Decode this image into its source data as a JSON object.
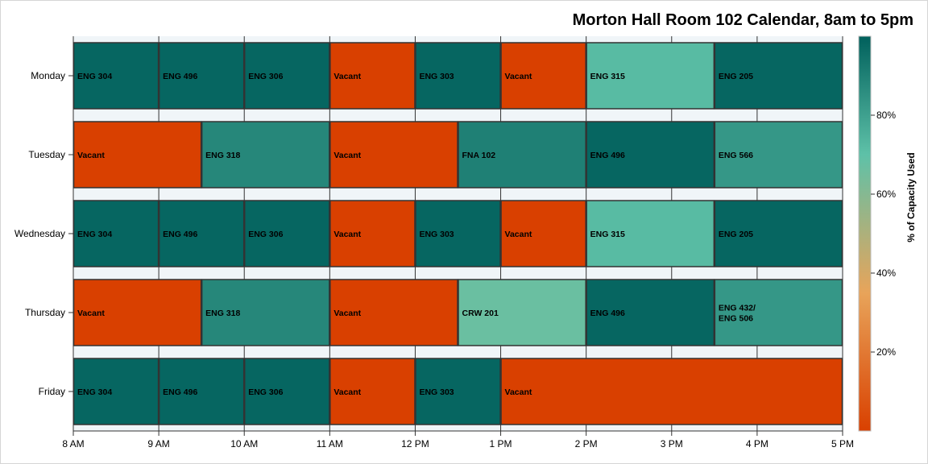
{
  "chart_data": {
    "type": "gantt",
    "title": "Morton Hall Room 102 Calendar, 8am to 5pm",
    "xlabel": "",
    "ylabel": "",
    "x_ticks": [
      {
        "hour": 8,
        "label": "8 AM"
      },
      {
        "hour": 9,
        "label": "9 AM"
      },
      {
        "hour": 10,
        "label": "10 AM"
      },
      {
        "hour": 11,
        "label": "11 AM"
      },
      {
        "hour": 12,
        "label": "12 PM"
      },
      {
        "hour": 13,
        "label": "1 PM"
      },
      {
        "hour": 14,
        "label": "2 PM"
      },
      {
        "hour": 15,
        "label": "3 PM"
      },
      {
        "hour": 16,
        "label": "4 PM"
      },
      {
        "hour": 17,
        "label": "5 PM"
      }
    ],
    "x_range": [
      8,
      17
    ],
    "days": [
      "Monday",
      "Tuesday",
      "Wednesday",
      "Thursday",
      "Friday"
    ],
    "schedule": [
      {
        "day": "Monday",
        "items": [
          {
            "start": 8,
            "end": 9,
            "label": "ENG 304",
            "capacity": 98
          },
          {
            "start": 9,
            "end": 10,
            "label": "ENG 496",
            "capacity": 98
          },
          {
            "start": 10,
            "end": 11,
            "label": "ENG 306",
            "capacity": 98
          },
          {
            "start": 11,
            "end": 12,
            "label": "Vacant",
            "capacity": 0
          },
          {
            "start": 12,
            "end": 13,
            "label": "ENG 303",
            "capacity": 98
          },
          {
            "start": 13,
            "end": 14,
            "label": "Vacant",
            "capacity": 0
          },
          {
            "start": 14,
            "end": 15.5,
            "label": "ENG 315",
            "capacity": 72
          },
          {
            "start": 15.5,
            "end": 17,
            "label": "ENG 205",
            "capacity": 98
          }
        ]
      },
      {
        "day": "Tuesday",
        "items": [
          {
            "start": 8,
            "end": 9.5,
            "label": "Vacant",
            "capacity": 0
          },
          {
            "start": 9.5,
            "end": 11,
            "label": "ENG 318",
            "capacity": 88
          },
          {
            "start": 11,
            "end": 12.5,
            "label": "Vacant",
            "capacity": 0
          },
          {
            "start": 12.5,
            "end": 14,
            "label": "FNA 102",
            "capacity": 90
          },
          {
            "start": 14,
            "end": 15.5,
            "label": "ENG 496",
            "capacity": 98
          },
          {
            "start": 15.5,
            "end": 17,
            "label": "ENG 566",
            "capacity": 83
          }
        ]
      },
      {
        "day": "Wednesday",
        "items": [
          {
            "start": 8,
            "end": 9,
            "label": "ENG 304",
            "capacity": 98
          },
          {
            "start": 9,
            "end": 10,
            "label": "ENG 496",
            "capacity": 98
          },
          {
            "start": 10,
            "end": 11,
            "label": "ENG 306",
            "capacity": 98
          },
          {
            "start": 11,
            "end": 12,
            "label": "Vacant",
            "capacity": 0
          },
          {
            "start": 12,
            "end": 13,
            "label": "ENG 303",
            "capacity": 98
          },
          {
            "start": 13,
            "end": 14,
            "label": "Vacant",
            "capacity": 0
          },
          {
            "start": 14,
            "end": 15.5,
            "label": "ENG 315",
            "capacity": 72
          },
          {
            "start": 15.5,
            "end": 17,
            "label": "ENG 205",
            "capacity": 98
          }
        ]
      },
      {
        "day": "Thursday",
        "items": [
          {
            "start": 8,
            "end": 9.5,
            "label": "Vacant",
            "capacity": 0
          },
          {
            "start": 9.5,
            "end": 11,
            "label": "ENG 318",
            "capacity": 88
          },
          {
            "start": 11,
            "end": 12.5,
            "label": "Vacant",
            "capacity": 0
          },
          {
            "start": 12.5,
            "end": 14,
            "label": "CRW 201",
            "capacity": 67
          },
          {
            "start": 14,
            "end": 15.5,
            "label": "ENG 496",
            "capacity": 98
          },
          {
            "start": 15.5,
            "end": 17,
            "label": "ENG 432/\nENG 506",
            "capacity": 83
          }
        ]
      },
      {
        "day": "Friday",
        "items": [
          {
            "start": 8,
            "end": 9,
            "label": "ENG 304",
            "capacity": 98
          },
          {
            "start": 9,
            "end": 10,
            "label": "ENG 496",
            "capacity": 98
          },
          {
            "start": 10,
            "end": 11,
            "label": "ENG 306",
            "capacity": 98
          },
          {
            "start": 11,
            "end": 12,
            "label": "Vacant",
            "capacity": 0
          },
          {
            "start": 12,
            "end": 13,
            "label": "ENG 303",
            "capacity": 98
          },
          {
            "start": 13,
            "end": 17,
            "label": "Vacant",
            "capacity": 0
          }
        ]
      }
    ],
    "color_legend": {
      "title": "% of Capacity Used",
      "placement": "right",
      "range": [
        0,
        100
      ],
      "ticks": [
        {
          "value": 20,
          "label": "20%"
        },
        {
          "value": 40,
          "label": "40%"
        },
        {
          "value": 60,
          "label": "60%"
        },
        {
          "value": 80,
          "label": "80%"
        }
      ],
      "color_stops": [
        {
          "value": 0,
          "color": "#d94000"
        },
        {
          "value": 35,
          "color": "#e8a45a"
        },
        {
          "value": 70,
          "color": "#5ec1a8"
        },
        {
          "value": 100,
          "color": "#00605c"
        }
      ]
    },
    "grid": true,
    "colors": {
      "row_band": "#f0f5f8",
      "bar_border": "#333333",
      "axis": "#333333",
      "grid": "#333333"
    }
  }
}
